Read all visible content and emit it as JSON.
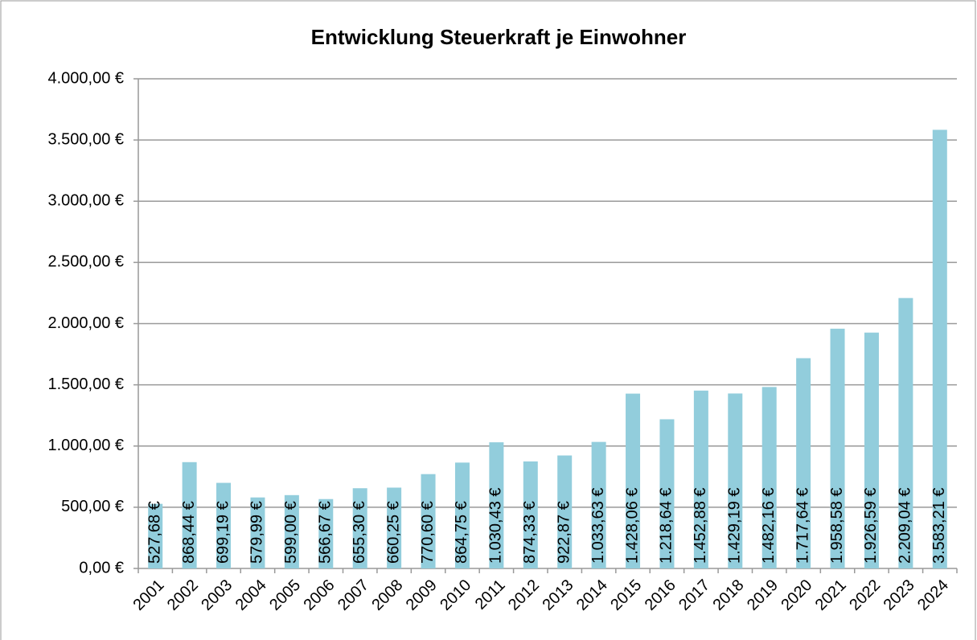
{
  "chart_data": {
    "type": "bar",
    "title": "Entwicklung Steuerkraft je Einwohner",
    "categories": [
      "2001",
      "2002",
      "2003",
      "2004",
      "2005",
      "2006",
      "2007",
      "2008",
      "2009",
      "2010",
      "2011",
      "2012",
      "2013",
      "2014",
      "2015",
      "2016",
      "2017",
      "2018",
      "2019",
      "2020",
      "2021",
      "2022",
      "2023",
      "2024"
    ],
    "values": [
      527.68,
      868.44,
      699.19,
      579.99,
      599.0,
      566.67,
      655.3,
      660.25,
      770.6,
      864.75,
      1030.43,
      874.33,
      922.87,
      1033.63,
      1428.06,
      1218.64,
      1452.88,
      1429.19,
      1482.16,
      1717.64,
      1958.58,
      1926.59,
      2209.04,
      3583.21
    ],
    "value_labels": [
      "527,68 €",
      "868,44 €",
      "699,19 €",
      "579,99 €",
      "599,00 €",
      "566,67 €",
      "655,30 €",
      "660,25 €",
      "770,60 €",
      "864,75 €",
      "1.030,43 €",
      "874,33 €",
      "922,87 €",
      "1.033,63 €",
      "1.428,06 €",
      "1.218,64 €",
      "1.452,88 €",
      "1.429,19 €",
      "1.482,16 €",
      "1.717,64 €",
      "1.958,58 €",
      "1.926,59 €",
      "2.209,04 €",
      "3.583,21 €"
    ],
    "color": "#92cddc",
    "ylim": [
      0,
      4000
    ],
    "yticks": [
      {
        "value": 0,
        "label": "0,00 €"
      },
      {
        "value": 500,
        "label": "500,00 €"
      },
      {
        "value": 1000,
        "label": "1.000,00 €"
      },
      {
        "value": 1500,
        "label": "1.500,00 €"
      },
      {
        "value": 2000,
        "label": "2.000,00 €"
      },
      {
        "value": 2500,
        "label": "2.500,00 €"
      },
      {
        "value": 3000,
        "label": "3.000,00 €"
      },
      {
        "value": 3500,
        "label": "3.500,00 €"
      },
      {
        "value": 4000,
        "label": "4.000,00 €"
      }
    ],
    "grid": true
  }
}
